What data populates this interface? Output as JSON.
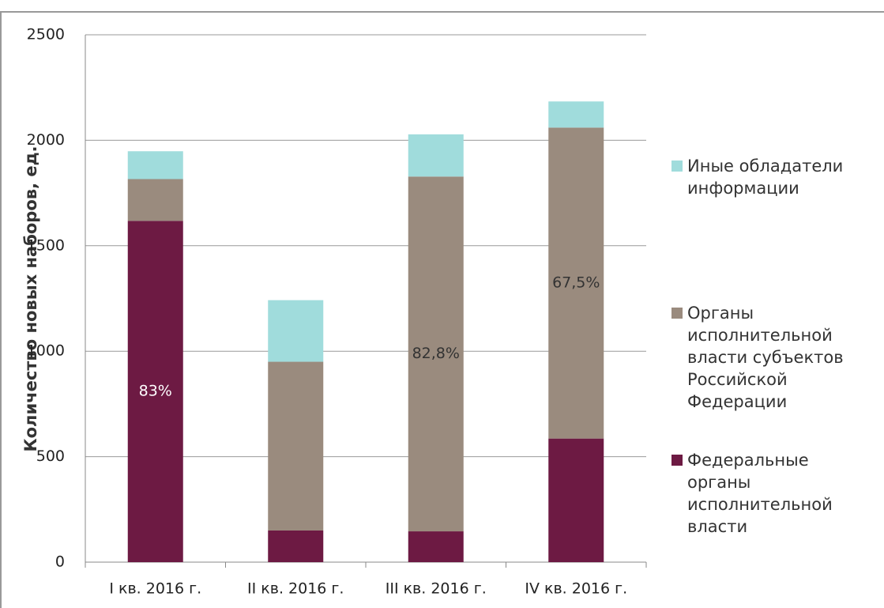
{
  "chart_data": {
    "type": "stacked_bar",
    "y_label": "Количество новых наборов, ед.",
    "categories": [
      "I кв. 2016 г.",
      "II кв. 2016 г.",
      "III кв. 2016 г.",
      "IV кв. 2016 г."
    ],
    "series": [
      {
        "name": "Федеральные органы исполнительной власти",
        "color": "#6d1a43",
        "values": [
          1618,
          150,
          146,
          586
        ]
      },
      {
        "name": "Органы исполнительной власти субъектов Российской Федерации",
        "color": "#9a8b7e",
        "values": [
          198,
          800,
          1682,
          1474
        ]
      },
      {
        "name": "Иные обладатели информации",
        "color": "#a0dcdc",
        "values": [
          132,
          292,
          200,
          124
        ]
      }
    ],
    "annotations": [
      {
        "text": "83%",
        "series": 0,
        "category": 0,
        "color": "#ffffff"
      },
      {
        "text": "82,8%",
        "series": 1,
        "category": 2,
        "color": "#333333"
      },
      {
        "text": "67,5%",
        "series": 1,
        "category": 3,
        "color": "#333333"
      }
    ],
    "ylim": [
      0,
      2500
    ],
    "yticks": [
      0,
      500,
      1000,
      1500,
      2000,
      2500
    ],
    "grid": true,
    "legend": "right"
  }
}
